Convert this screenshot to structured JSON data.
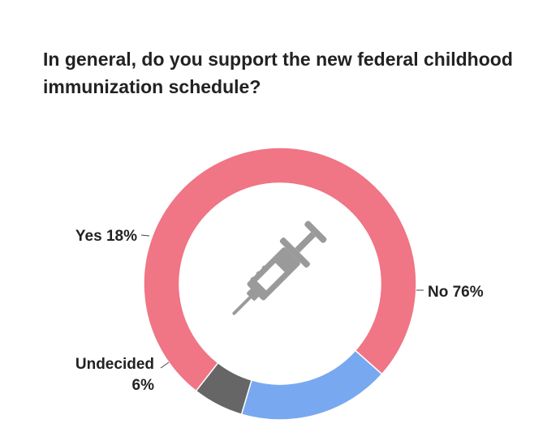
{
  "chart_data": {
    "type": "pie",
    "donut": true,
    "title": "In general, do you support the new federal childhood immunization schedule?",
    "slices": [
      {
        "label": "No",
        "value": 76,
        "display": "No 76%",
        "color": "#f07585"
      },
      {
        "label": "Yes",
        "value": 18,
        "display": "Yes 18%",
        "color": "#78a8f0"
      },
      {
        "label": "Undecided",
        "value": 6,
        "display_lines": [
          "Undecided",
          "6%"
        ],
        "color": "#666666"
      }
    ],
    "center_icon": "syringe-icon",
    "center_icon_color": "#9a9a9a",
    "legend": "none"
  }
}
